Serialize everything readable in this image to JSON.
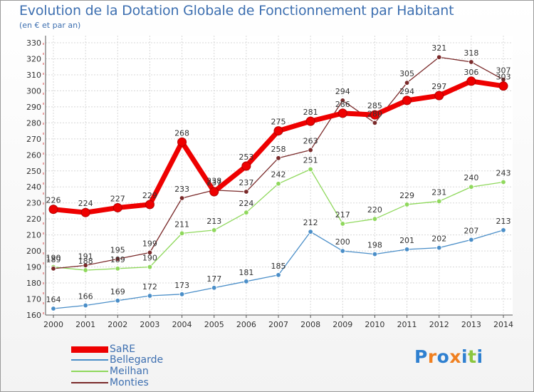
{
  "chart_data": {
    "type": "line",
    "title": "Evolution de la Dotation Globale de Fonctionnement par Habitant",
    "subtitle": "(en € et par an)",
    "xlabel": "",
    "ylabel": "",
    "x": [
      "2000",
      "2001",
      "2002",
      "2003",
      "2004",
      "2005",
      "2006",
      "2007",
      "2008",
      "2009",
      "2010",
      "2011",
      "2012",
      "2013",
      "2014"
    ],
    "ylim": [
      160,
      330
    ],
    "yticks": [
      160,
      170,
      180,
      190,
      200,
      210,
      220,
      230,
      240,
      250,
      260,
      270,
      280,
      290,
      300,
      310,
      320,
      330
    ],
    "grid": true,
    "series": [
      {
        "name": "SaRE",
        "color": "#ee0000",
        "values": [
          226,
          224,
          227,
          229,
          268,
          237,
          253,
          275,
          281,
          286,
          285,
          294,
          297,
          306,
          303
        ]
      },
      {
        "name": "Bellegarde",
        "color": "#4a8ec8",
        "values": [
          164,
          166,
          169,
          172,
          173,
          177,
          181,
          185,
          212,
          200,
          198,
          201,
          202,
          207,
          213
        ]
      },
      {
        "name": "Meilhan",
        "color": "#8fd85c",
        "values": [
          190,
          188,
          189,
          190,
          211,
          213,
          224,
          242,
          251,
          217,
          220,
          229,
          231,
          240,
          243
        ]
      },
      {
        "name": "Monties",
        "color": "#7a2a2a",
        "values": [
          189,
          191,
          195,
          199,
          233,
          238,
          237,
          258,
          263,
          294,
          280,
          305,
          321,
          318,
          307
        ]
      }
    ]
  },
  "branding": {
    "logo_text": "Proxiti",
    "logo_letters": [
      "P",
      "r",
      "o",
      "x",
      "i",
      "t",
      "i"
    ],
    "logo_colors": [
      "#2f80d0",
      "#f08020",
      "#2f80d0",
      "#f08020",
      "#2f80d0",
      "#8cc63f",
      "#2f80d0"
    ]
  }
}
